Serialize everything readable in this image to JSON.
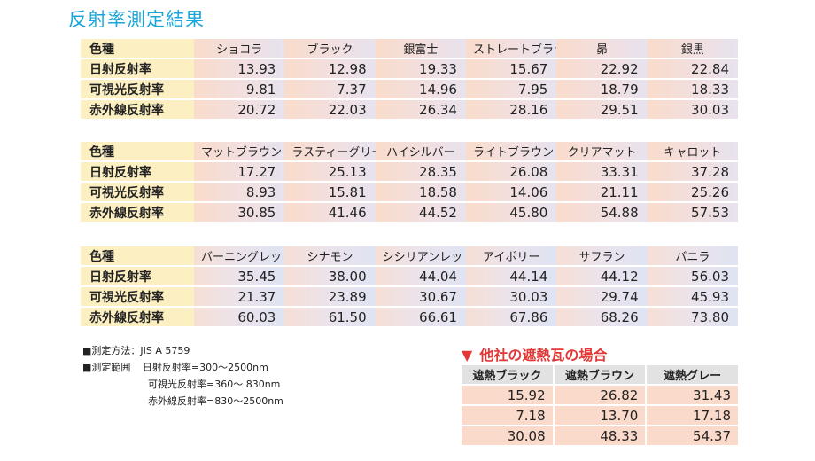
{
  "title": "反射率測定結果",
  "tables": [
    {
      "header_label": "色種",
      "colors": [
        "ショコラ",
        "ブラック",
        "銀富士",
        "ストレートブラック",
        "昴",
        "銀黒"
      ],
      "rows": [
        {
          "label": "日射反射率",
          "values": [
            "13.93",
            "12.98",
            "19.33",
            "15.67",
            "22.92",
            "22.84"
          ]
        },
        {
          "label": "可視光反射率",
          "values": [
            "9.81",
            "7.37",
            "14.96",
            "7.95",
            "18.79",
            "18.33"
          ]
        },
        {
          "label": "赤外線反射率",
          "values": [
            "20.72",
            "22.03",
            "26.34",
            "28.16",
            "29.51",
            "30.03"
          ]
        }
      ]
    },
    {
      "header_label": "色種",
      "colors": [
        "マットブラウン",
        "ラスティーグリーン",
        "ハイシルバー",
        "ライトブラウン",
        "クリアマット",
        "キャロット"
      ],
      "rows": [
        {
          "label": "日射反射率",
          "values": [
            "17.27",
            "25.13",
            "28.35",
            "26.08",
            "33.31",
            "37.28"
          ]
        },
        {
          "label": "可視光反射率",
          "values": [
            "8.93",
            "15.81",
            "18.58",
            "14.06",
            "21.11",
            "25.26"
          ]
        },
        {
          "label": "赤外線反射率",
          "values": [
            "30.85",
            "41.46",
            "44.52",
            "45.80",
            "54.88",
            "57.53"
          ]
        }
      ]
    },
    {
      "header_label": "色種",
      "colors": [
        "バーニングレッド",
        "シナモン",
        "シシリアンレッド",
        "アイボリー",
        "サフラン",
        "バニラ"
      ],
      "rows": [
        {
          "label": "日射反射率",
          "values": [
            "35.45",
            "38.00",
            "44.04",
            "44.14",
            "44.12",
            "56.03"
          ]
        },
        {
          "label": "可視光反射率",
          "values": [
            "21.37",
            "23.89",
            "30.67",
            "30.03",
            "29.74",
            "45.93"
          ]
        },
        {
          "label": "赤外線反射率",
          "values": [
            "60.03",
            "61.50",
            "66.61",
            "67.86",
            "68.26",
            "73.80"
          ]
        }
      ]
    }
  ],
  "notes": {
    "method": "■測定方法：JIS A 5759",
    "range_label": "■測定範囲",
    "range_solar": "日射反射率=300〜2500nm",
    "range_visible": "可視光反射率=360〜 830nm",
    "range_infrared": "赤外線反射率=830〜2500nm"
  },
  "other": {
    "marker": "▼",
    "title": "他社の遮熱瓦の場合",
    "headers": [
      "遮熱ブラック",
      "遮熱ブラウン",
      "遮熱グレー"
    ],
    "rows": [
      [
        "15.92",
        "26.82",
        "31.43"
      ],
      [
        "7.18",
        "13.70",
        "17.18"
      ],
      [
        "30.08",
        "48.33",
        "54.37"
      ]
    ]
  },
  "colors": {
    "title": "#1aa6d9",
    "label_bg": "#fcefc2",
    "other_title": "#e23838"
  }
}
